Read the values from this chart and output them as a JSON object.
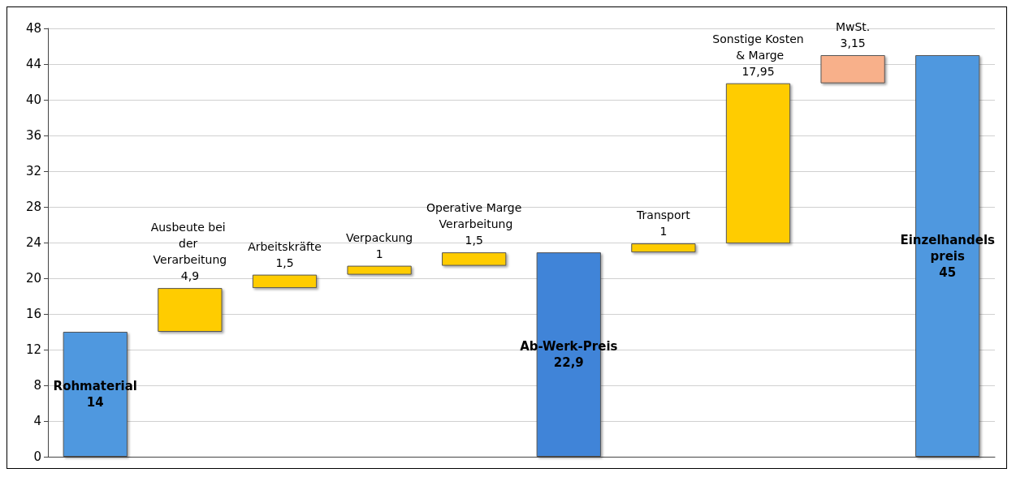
{
  "chart_data": {
    "type": "bar",
    "categories": [
      "Rohmaterial",
      "Ausbeute bei der Verarbeitung",
      "Arbeitskräfte",
      "Verpackung",
      "Operative Marge Verarbeitung",
      "Ab-Werk-Preis",
      "Transport",
      "Sonstige Kosten & Marge",
      "MwSt.",
      "Einzelhandelspreis"
    ],
    "values": [
      14,
      4.9,
      1.5,
      1,
      1.5,
      22.9,
      1,
      17.95,
      3.15,
      45
    ],
    "base": [
      0,
      14,
      18.9,
      20.4,
      21.4,
      0,
      22.9,
      23.9,
      41.85,
      0
    ],
    "value_labels": [
      "14",
      "4,9",
      "1,5",
      "1",
      "1,5",
      "22,9",
      "1",
      "17,95",
      "3,15",
      "45"
    ],
    "colors": [
      "#4f98df",
      "#ffcc00",
      "#ffcc00",
      "#ffcc00",
      "#ffcc00",
      "#3f84d8",
      "#ffcc00",
      "#ffcc00",
      "#f8b08a",
      "#4f98df"
    ],
    "ylim": [
      0,
      48
    ],
    "yticks": [
      0,
      4,
      8,
      12,
      16,
      20,
      24,
      28,
      32,
      36,
      40,
      44,
      48
    ],
    "grid": "y",
    "tick_labels": "y"
  }
}
